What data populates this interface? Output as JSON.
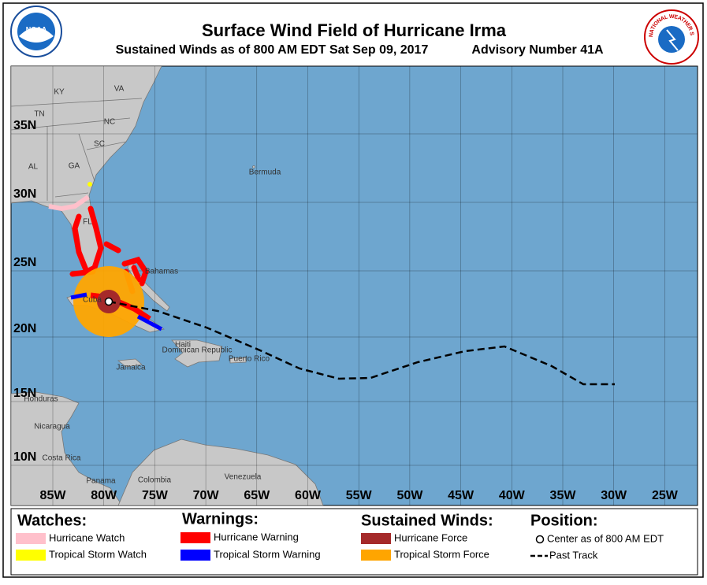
{
  "header": {
    "title": "Surface Wind Field of Hurricane Irma",
    "subtitle": "Sustained Winds as of 800 AM EDT Sat Sep 09, 2017",
    "advisory": "Advisory Number 41A",
    "noaa_logo": "NOAA",
    "nws_logo": "NATIONAL WEATHER SERVICE"
  },
  "map": {
    "longitude_labels": [
      "85W",
      "80W",
      "75W",
      "70W",
      "65W",
      "60W",
      "55W",
      "50W",
      "45W",
      "40W",
      "35W",
      "30W",
      "25W"
    ],
    "latitude_labels": [
      "35N",
      "30N",
      "25N",
      "20N",
      "15N",
      "10N"
    ],
    "places": [
      "KY",
      "VA",
      "TN",
      "NC",
      "SC",
      "AL",
      "GA",
      "FL",
      "Bermuda",
      "Bahamas",
      "Cuba",
      "Haiti",
      "Dominican Republic",
      "Puerto Rico",
      "Jamaica",
      "Honduras",
      "Nicaragua",
      "Costa Rica",
      "Panama",
      "Colombia",
      "Venezuela"
    ]
  },
  "legend": {
    "watches": {
      "title": "Watches:",
      "items": [
        "Hurricane Watch",
        "Tropical Storm Watch"
      ]
    },
    "warnings": {
      "title": "Warnings:",
      "items": [
        "Hurricane Warning",
        "Tropical Storm Warning"
      ]
    },
    "winds": {
      "title": "Sustained Winds:",
      "items": [
        "Hurricane Force",
        "Tropical Storm Force"
      ]
    },
    "position": {
      "title": "Position:",
      "items": [
        "Center as of 800 AM EDT",
        "Past Track"
      ]
    }
  }
}
